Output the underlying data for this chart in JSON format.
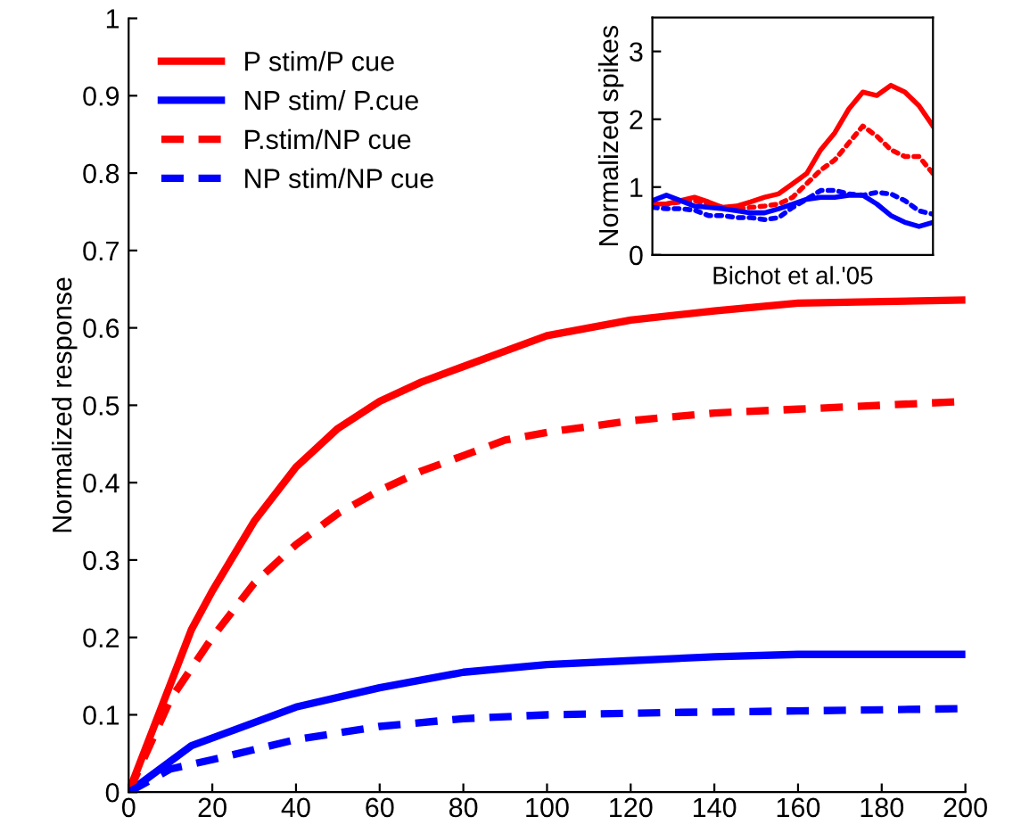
{
  "chart_data": [
    {
      "type": "line",
      "ylabel": "Normalized response",
      "xlim": [
        0,
        200
      ],
      "ylim": [
        0,
        1
      ],
      "xticks": [
        0,
        20,
        40,
        60,
        80,
        100,
        120,
        140,
        160,
        180,
        200
      ],
      "yticks": [
        0,
        0.1,
        0.2,
        0.3,
        0.4,
        0.5,
        0.6,
        0.7,
        0.8,
        0.9,
        1
      ],
      "legend": "top left",
      "grid": false,
      "series": [
        {
          "name": "P stim/P cue",
          "color": "#ff0000",
          "line_style": "solid",
          "x": [
            0,
            5,
            15,
            20,
            30,
            40,
            50,
            60,
            70,
            80,
            90,
            100,
            110,
            120,
            140,
            160,
            180,
            200
          ],
          "values": [
            0,
            0.07,
            0.21,
            0.26,
            0.35,
            0.42,
            0.47,
            0.505,
            0.53,
            0.55,
            0.57,
            0.59,
            0.6,
            0.61,
            0.622,
            0.632,
            0.634,
            0.636
          ]
        },
        {
          "name": "NP stim/ P.cue",
          "color": "#0000ff",
          "line_style": "solid",
          "x": [
            0,
            5,
            15,
            25,
            40,
            60,
            80,
            100,
            120,
            140,
            160,
            200
          ],
          "values": [
            0,
            0.02,
            0.06,
            0.08,
            0.11,
            0.135,
            0.155,
            0.165,
            0.17,
            0.175,
            0.178,
            0.178
          ]
        },
        {
          "name": "P.stim/NP cue",
          "color": "#ff0000",
          "line_style": "dashed",
          "x": [
            0,
            5,
            10,
            20,
            30,
            40,
            50,
            60,
            70,
            80,
            90,
            100,
            120,
            140,
            160,
            180,
            200
          ],
          "values": [
            0,
            0.06,
            0.12,
            0.2,
            0.27,
            0.32,
            0.36,
            0.39,
            0.415,
            0.435,
            0.455,
            0.465,
            0.48,
            0.49,
            0.495,
            0.5,
            0.505
          ]
        },
        {
          "name": "NP stim/NP cue",
          "color": "#0000ff",
          "line_style": "dashed",
          "x": [
            0,
            5,
            10,
            20,
            40,
            60,
            80,
            100,
            130,
            160,
            200
          ],
          "values": [
            0,
            0.015,
            0.03,
            0.042,
            0.068,
            0.085,
            0.095,
            0.1,
            0.103,
            0.105,
            0.108
          ]
        }
      ]
    },
    {
      "type": "line",
      "ylabel": "Normalized spikes",
      "xlabel": "Bichot et al.'05",
      "ylim": [
        0,
        3.5
      ],
      "yticks": [
        0,
        1,
        2,
        3
      ],
      "grid": false,
      "categories": [
        null,
        null,
        null,
        null,
        null,
        null,
        null,
        null,
        null,
        null,
        null,
        null,
        null,
        null,
        null,
        null,
        null,
        null,
        null,
        null,
        null
      ],
      "series": [
        {
          "color": "#ff0000",
          "line_style": "solid",
          "values": [
            0.75,
            0.75,
            0.8,
            0.85,
            0.78,
            0.7,
            0.72,
            0.78,
            0.85,
            0.9,
            1.05,
            1.2,
            1.55,
            1.8,
            2.15,
            2.4,
            2.35,
            2.5,
            2.4,
            2.2,
            1.9
          ]
        },
        {
          "color": "#ff0000",
          "line_style": "dotted",
          "values": [
            0.72,
            0.75,
            0.78,
            0.8,
            0.75,
            0.7,
            0.68,
            0.7,
            0.72,
            0.75,
            0.85,
            1.05,
            1.25,
            1.4,
            1.65,
            1.9,
            1.75,
            1.55,
            1.45,
            1.45,
            1.2
          ]
        },
        {
          "color": "#0000ff",
          "line_style": "solid",
          "values": [
            0.8,
            0.88,
            0.8,
            0.72,
            0.7,
            0.68,
            0.65,
            0.62,
            0.62,
            0.68,
            0.75,
            0.82,
            0.85,
            0.85,
            0.88,
            0.88,
            0.75,
            0.58,
            0.48,
            0.42,
            0.48
          ]
        },
        {
          "color": "#0000ff",
          "line_style": "dotted",
          "values": [
            0.7,
            0.68,
            0.68,
            0.66,
            0.58,
            0.58,
            0.55,
            0.55,
            0.52,
            0.55,
            0.7,
            0.82,
            0.95,
            0.95,
            0.9,
            0.88,
            0.92,
            0.9,
            0.8,
            0.65,
            0.6
          ]
        }
      ]
    }
  ]
}
